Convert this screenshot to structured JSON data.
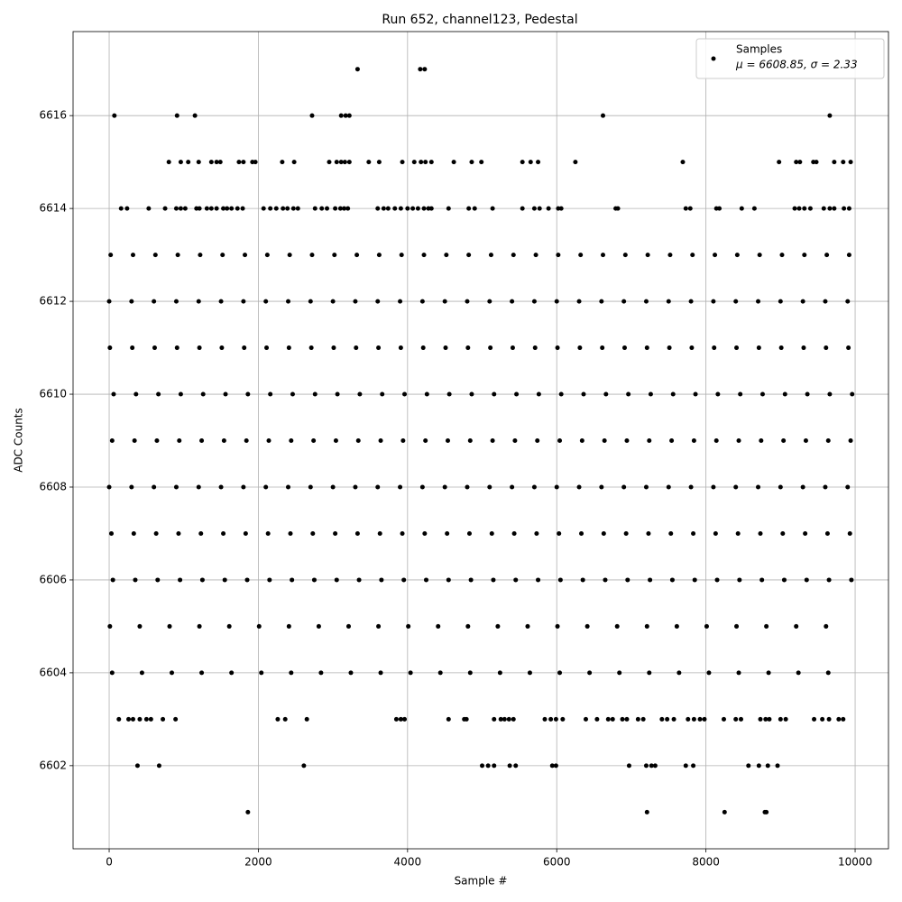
{
  "chart_data": {
    "type": "scatter",
    "title": "Run 652, channel123, Pedestal",
    "x_label": "Sample #",
    "y_label": "ADC Counts",
    "xlim": [
      -484,
      10447
    ],
    "ylim": [
      6600.21,
      6617.81
    ],
    "xticks": [
      0,
      2000,
      4000,
      6000,
      8000,
      10000
    ],
    "yticks": [
      6602,
      6604,
      6606,
      6608,
      6610,
      6612,
      6614,
      6616
    ],
    "grid": true,
    "legend_position": "upper right",
    "legend_note": "μ = 6608.85, σ = 2.33",
    "series": [
      {
        "name": "Samples",
        "color": "#000000",
        "x": [
          3330,
          4170,
          4230,
          70,
          910,
          1150,
          2720,
          3110,
          3170,
          3220,
          6620,
          9660,
          1860,
          7210,
          8250,
          8790,
          8810,
          380,
          670,
          2610,
          5000,
          5080,
          5160,
          5370,
          5450,
          5940,
          5990,
          6970,
          7200,
          7270,
          7320,
          7730,
          7830,
          8570,
          8710,
          8830,
          8960,
          130,
          260,
          320,
          410,
          500,
          560,
          720,
          890,
          2260,
          2360,
          2650,
          3850,
          3910,
          3960,
          4550,
          4760,
          4790,
          5160,
          5250,
          5300,
          5360,
          5420,
          5840,
          5920,
          5990,
          6080,
          6390,
          6540,
          6690,
          6750,
          6880,
          6940,
          7090,
          7160,
          7410,
          7480,
          7570,
          7760,
          7840,
          7920,
          7980,
          8240,
          8400,
          8470,
          8730,
          8800,
          8850,
          9000,
          9070,
          9450,
          9560,
          9650,
          9780,
          9840,
          800,
          960,
          1060,
          1200,
          1370,
          1440,
          1490,
          1740,
          1800,
          1920,
          1960,
          2320,
          2480,
          2950,
          3050,
          3110,
          3160,
          3220,
          3480,
          3620,
          3930,
          4090,
          4180,
          4240,
          4320,
          4620,
          4860,
          4990,
          5540,
          5650,
          5750,
          6250,
          7690,
          8980,
          9210,
          9260,
          9440,
          9480,
          9720,
          9840,
          9940,
          160,
          240,
          530,
          750,
          900,
          960,
          1020,
          1170,
          1210,
          1310,
          1370,
          1440,
          1530,
          1580,
          1640,
          1720,
          1790,
          2070,
          2160,
          2240,
          2330,
          2390,
          2470,
          2530,
          2760,
          2850,
          2920,
          3030,
          3100,
          3150,
          3200,
          3600,
          3680,
          3740,
          3830,
          3910,
          4000,
          4070,
          4140,
          4220,
          4280,
          4320,
          4550,
          4820,
          4900,
          5140,
          5540,
          5700,
          5770,
          5890,
          6020,
          6060,
          6790,
          6820,
          7730,
          7790,
          8140,
          8180,
          8480,
          8650,
          9190,
          9250,
          9320,
          9400,
          9580,
          9660,
          9720,
          9850,
          9920,
          20,
          320,
          620,
          920,
          1220,
          1520,
          1820,
          2120,
          2420,
          2720,
          3020,
          3320,
          3620,
          3920,
          4220,
          4520,
          4820,
          5120,
          5420,
          5720,
          6020,
          6320,
          6620,
          6920,
          7220,
          7520,
          7820,
          8120,
          8420,
          8720,
          9020,
          9320,
          9620,
          9920,
          0,
          300,
          600,
          900,
          1200,
          1500,
          1800,
          2100,
          2400,
          2700,
          3000,
          3300,
          3600,
          3900,
          4200,
          4500,
          4800,
          5100,
          5400,
          5700,
          6000,
          6300,
          6600,
          6900,
          7200,
          7500,
          7800,
          8100,
          8400,
          8700,
          9000,
          9300,
          9600,
          9900,
          10,
          310,
          610,
          910,
          1210,
          1510,
          1810,
          2110,
          2410,
          2710,
          3010,
          3310,
          3610,
          3910,
          4210,
          4510,
          4810,
          5110,
          5410,
          5710,
          6010,
          6310,
          6610,
          6910,
          7210,
          7510,
          7810,
          8110,
          8410,
          8710,
          9010,
          9310,
          9610,
          9910,
          60,
          360,
          660,
          960,
          1260,
          1560,
          1860,
          2160,
          2460,
          2760,
          3060,
          3360,
          3660,
          3960,
          4260,
          4560,
          4860,
          5160,
          5460,
          5760,
          6060,
          6360,
          6660,
          6960,
          7260,
          7560,
          7860,
          8160,
          8460,
          8760,
          9060,
          9360,
          9660,
          9960,
          40,
          340,
          640,
          940,
          1240,
          1540,
          1840,
          2140,
          2440,
          2740,
          3040,
          3340,
          3640,
          3940,
          4240,
          4540,
          4840,
          5140,
          5440,
          5740,
          6040,
          6340,
          6640,
          6940,
          7240,
          7540,
          7840,
          8140,
          8440,
          8740,
          9040,
          9340,
          9640,
          9940,
          0,
          300,
          600,
          900,
          1200,
          1500,
          1800,
          2100,
          2400,
          2700,
          3000,
          3300,
          3600,
          3900,
          4200,
          4500,
          4800,
          5100,
          5400,
          5700,
          6000,
          6300,
          6600,
          6900,
          7200,
          7500,
          7800,
          8100,
          8400,
          8700,
          9000,
          9300,
          9600,
          9900,
          30,
          330,
          630,
          930,
          1230,
          1530,
          1830,
          2130,
          2430,
          2730,
          3030,
          3330,
          3630,
          3930,
          4230,
          4530,
          4830,
          5130,
          5430,
          5730,
          6030,
          6330,
          6630,
          6930,
          7230,
          7530,
          7830,
          8130,
          8430,
          8730,
          9030,
          9330,
          9630,
          9930,
          50,
          350,
          650,
          950,
          1250,
          1550,
          1850,
          2150,
          2450,
          2750,
          3050,
          3350,
          3650,
          3950,
          4250,
          4550,
          4850,
          5150,
          5450,
          5750,
          6050,
          6350,
          6650,
          6950,
          7250,
          7550,
          7850,
          8150,
          8450,
          8750,
          9050,
          9350,
          9650,
          9950,
          10,
          410,
          810,
          1210,
          1610,
          2010,
          2410,
          2810,
          3210,
          3610,
          4010,
          4410,
          4810,
          5210,
          5610,
          6010,
          6410,
          6810,
          7210,
          7610,
          8010,
          8410,
          8810,
          9210,
          9610,
          40,
          440,
          840,
          1240,
          1640,
          2040,
          2440,
          2840,
          3240,
          3640,
          4040,
          4440,
          4840,
          5240,
          5640,
          6040,
          6440,
          6840,
          7240,
          7640,
          8040,
          8440,
          8840,
          9240,
          9640
        ],
        "values": [
          6617,
          6617,
          6617,
          6616,
          6616,
          6616,
          6616,
          6616,
          6616,
          6616,
          6616,
          6616,
          6601,
          6601,
          6601,
          6601,
          6601,
          6602,
          6602,
          6602,
          6602,
          6602,
          6602,
          6602,
          6602,
          6602,
          6602,
          6602,
          6602,
          6602,
          6602,
          6602,
          6602,
          6602,
          6602,
          6602,
          6602,
          6603,
          6603,
          6603,
          6603,
          6603,
          6603,
          6603,
          6603,
          6603,
          6603,
          6603,
          6603,
          6603,
          6603,
          6603,
          6603,
          6603,
          6603,
          6603,
          6603,
          6603,
          6603,
          6603,
          6603,
          6603,
          6603,
          6603,
          6603,
          6603,
          6603,
          6603,
          6603,
          6603,
          6603,
          6603,
          6603,
          6603,
          6603,
          6603,
          6603,
          6603,
          6603,
          6603,
          6603,
          6603,
          6603,
          6603,
          6603,
          6603,
          6603,
          6603,
          6603,
          6603,
          6603,
          6615,
          6615,
          6615,
          6615,
          6615,
          6615,
          6615,
          6615,
          6615,
          6615,
          6615,
          6615,
          6615,
          6615,
          6615,
          6615,
          6615,
          6615,
          6615,
          6615,
          6615,
          6615,
          6615,
          6615,
          6615,
          6615,
          6615,
          6615,
          6615,
          6615,
          6615,
          6615,
          6615,
          6615,
          6615,
          6615,
          6615,
          6615,
          6615,
          6615,
          6615,
          6614,
          6614,
          6614,
          6614,
          6614,
          6614,
          6614,
          6614,
          6614,
          6614,
          6614,
          6614,
          6614,
          6614,
          6614,
          6614,
          6614,
          6614,
          6614,
          6614,
          6614,
          6614,
          6614,
          6614,
          6614,
          6614,
          6614,
          6614,
          6614,
          6614,
          6614,
          6614,
          6614,
          6614,
          6614,
          6614,
          6614,
          6614,
          6614,
          6614,
          6614,
          6614,
          6614,
          6614,
          6614,
          6614,
          6614,
          6614,
          6614,
          6614,
          6614,
          6614,
          6614,
          6614,
          6614,
          6614,
          6614,
          6614,
          6614,
          6614,
          6614,
          6614,
          6614,
          6614,
          6614,
          6614,
          6614,
          6614,
          6614,
          6613,
          6613,
          6613,
          6613,
          6613,
          6613,
          6613,
          6613,
          6613,
          6613,
          6613,
          6613,
          6613,
          6613,
          6613,
          6613,
          6613,
          6613,
          6613,
          6613,
          6613,
          6613,
          6613,
          6613,
          6613,
          6613,
          6613,
          6613,
          6613,
          6613,
          6613,
          6613,
          6613,
          6613,
          6612,
          6612,
          6612,
          6612,
          6612,
          6612,
          6612,
          6612,
          6612,
          6612,
          6612,
          6612,
          6612,
          6612,
          6612,
          6612,
          6612,
          6612,
          6612,
          6612,
          6612,
          6612,
          6612,
          6612,
          6612,
          6612,
          6612,
          6612,
          6612,
          6612,
          6612,
          6612,
          6612,
          6612,
          6611,
          6611,
          6611,
          6611,
          6611,
          6611,
          6611,
          6611,
          6611,
          6611,
          6611,
          6611,
          6611,
          6611,
          6611,
          6611,
          6611,
          6611,
          6611,
          6611,
          6611,
          6611,
          6611,
          6611,
          6611,
          6611,
          6611,
          6611,
          6611,
          6611,
          6611,
          6611,
          6611,
          6611,
          6610,
          6610,
          6610,
          6610,
          6610,
          6610,
          6610,
          6610,
          6610,
          6610,
          6610,
          6610,
          6610,
          6610,
          6610,
          6610,
          6610,
          6610,
          6610,
          6610,
          6610,
          6610,
          6610,
          6610,
          6610,
          6610,
          6610,
          6610,
          6610,
          6610,
          6610,
          6610,
          6610,
          6610,
          6609,
          6609,
          6609,
          6609,
          6609,
          6609,
          6609,
          6609,
          6609,
          6609,
          6609,
          6609,
          6609,
          6609,
          6609,
          6609,
          6609,
          6609,
          6609,
          6609,
          6609,
          6609,
          6609,
          6609,
          6609,
          6609,
          6609,
          6609,
          6609,
          6609,
          6609,
          6609,
          6609,
          6609,
          6608,
          6608,
          6608,
          6608,
          6608,
          6608,
          6608,
          6608,
          6608,
          6608,
          6608,
          6608,
          6608,
          6608,
          6608,
          6608,
          6608,
          6608,
          6608,
          6608,
          6608,
          6608,
          6608,
          6608,
          6608,
          6608,
          6608,
          6608,
          6608,
          6608,
          6608,
          6608,
          6608,
          6608,
          6607,
          6607,
          6607,
          6607,
          6607,
          6607,
          6607,
          6607,
          6607,
          6607,
          6607,
          6607,
          6607,
          6607,
          6607,
          6607,
          6607,
          6607,
          6607,
          6607,
          6607,
          6607,
          6607,
          6607,
          6607,
          6607,
          6607,
          6607,
          6607,
          6607,
          6607,
          6607,
          6607,
          6607,
          6606,
          6606,
          6606,
          6606,
          6606,
          6606,
          6606,
          6606,
          6606,
          6606,
          6606,
          6606,
          6606,
          6606,
          6606,
          6606,
          6606,
          6606,
          6606,
          6606,
          6606,
          6606,
          6606,
          6606,
          6606,
          6606,
          6606,
          6606,
          6606,
          6606,
          6606,
          6606,
          6606,
          6606,
          6605,
          6605,
          6605,
          6605,
          6605,
          6605,
          6605,
          6605,
          6605,
          6605,
          6605,
          6605,
          6605,
          6605,
          6605,
          6605,
          6605,
          6605,
          6605,
          6605,
          6605,
          6605,
          6605,
          6605,
          6605,
          6604,
          6604,
          6604,
          6604,
          6604,
          6604,
          6604,
          6604,
          6604,
          6604,
          6604,
          6604,
          6604,
          6604,
          6604,
          6604,
          6604,
          6604,
          6604,
          6604,
          6604,
          6604,
          6604,
          6604,
          6604
        ]
      }
    ]
  }
}
